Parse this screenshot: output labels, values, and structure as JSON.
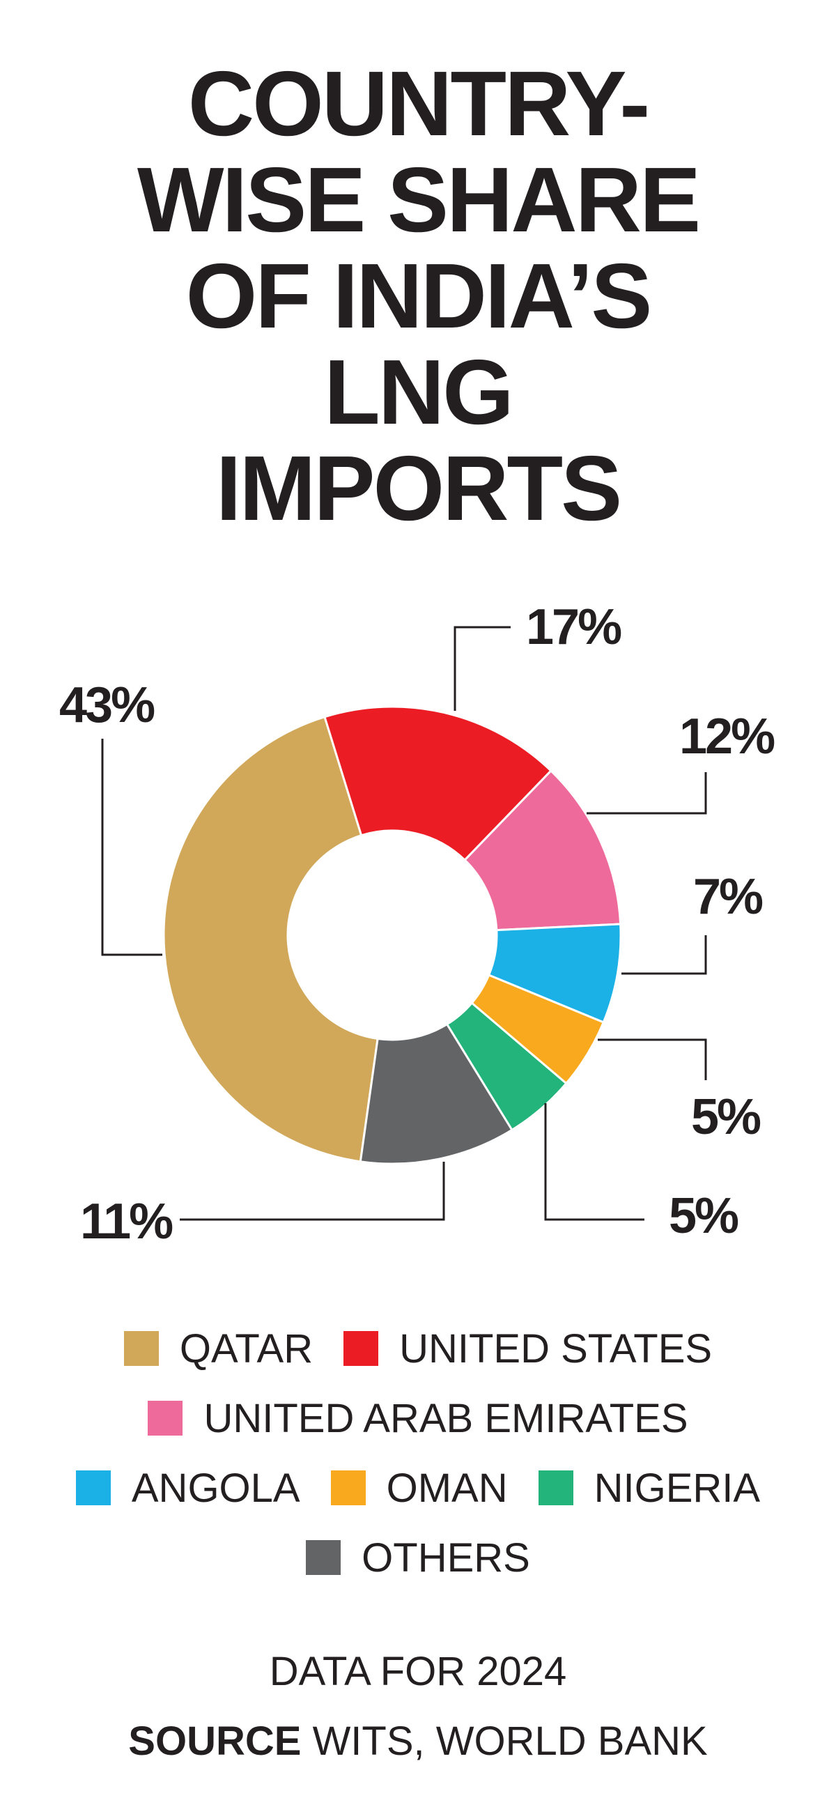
{
  "chart_data": {
    "type": "donut",
    "title": "COUNTRY-WISE SHARE OF INDIA’S LNG IMPORTS",
    "categories": [
      "QATAR",
      "UNITED STATES",
      "UNITED ARAB EMIRATES",
      "ANGOLA",
      "OMAN",
      "NIGERIA",
      "OTHERS"
    ],
    "values": [
      43,
      17,
      12,
      7,
      5,
      5,
      11
    ],
    "value_labels": [
      "43%",
      "17%",
      "12%",
      "7%",
      "5%",
      "5%",
      "11%"
    ],
    "colors": [
      "#d1a85a",
      "#ec1c24",
      "#ee6a9b",
      "#1bb1e6",
      "#f9a91e",
      "#22b47a",
      "#636466"
    ],
    "note": "DATA FOR 2024",
    "source": {
      "label": "SOURCE",
      "text": "WITS, WORLD BANK"
    }
  }
}
